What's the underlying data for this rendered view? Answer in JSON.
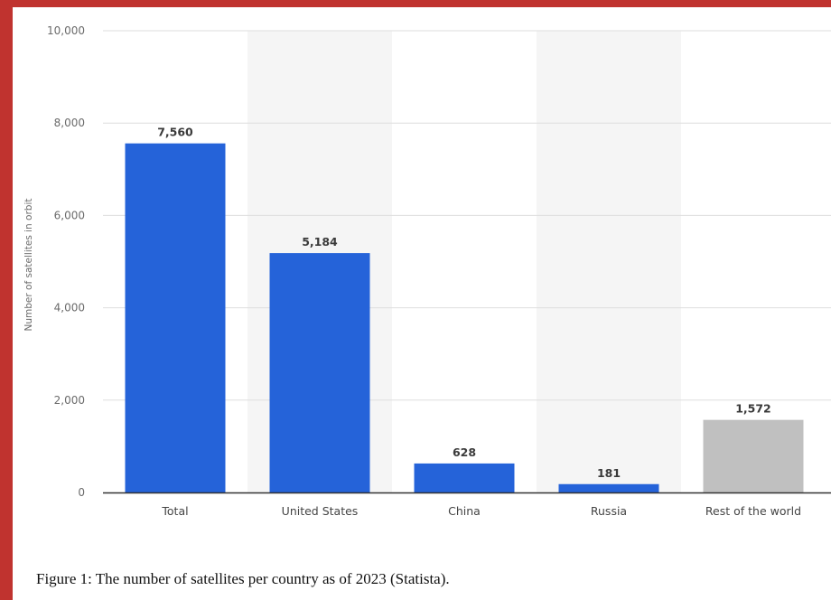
{
  "chart_data": {
    "type": "bar",
    "categories": [
      "Total",
      "United States",
      "China",
      "Russia",
      "Rest of the world"
    ],
    "values": [
      7560,
      5184,
      628,
      181,
      1572
    ],
    "value_labels": [
      "7,560",
      "5,184",
      "628",
      "181",
      "1,572"
    ],
    "ylabel": "Number of satellites in orbit",
    "xlabel": "",
    "ylim": [
      0,
      10000
    ],
    "yticks": [
      0,
      2000,
      4000,
      6000,
      8000,
      10000
    ],
    "ytick_labels": [
      "0",
      "2,000",
      "4,000",
      "6,000",
      "8,000",
      "10,000"
    ],
    "grid": true,
    "colors": {
      "primary": "#2563d9",
      "highlight": "#c0c0c0",
      "band": "#f5f5f5",
      "grid": "#dedede",
      "axis": "#333333"
    },
    "highlight_index": 4,
    "banded_columns": [
      1,
      3
    ]
  },
  "caption": "Figure 1: The number of satellites per country as of 2023 (Statista).",
  "frame_color": "#c0332f"
}
